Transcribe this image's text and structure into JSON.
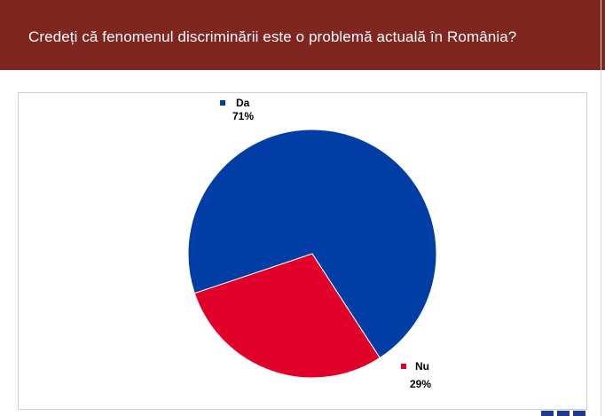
{
  "header": {
    "title": "Credeți că fenomenul discriminării este o problemă actuală în România?"
  },
  "chart_data": {
    "type": "pie",
    "title": "Credeți că fenomenul discriminării este o problemă actuală în România?",
    "categories": [
      "Da",
      "Nu"
    ],
    "values": [
      71,
      29
    ],
    "value_labels": [
      "71%",
      "29%"
    ],
    "colors": [
      "#003da5",
      "#e0002a"
    ],
    "legend": "data labels next to slices"
  }
}
